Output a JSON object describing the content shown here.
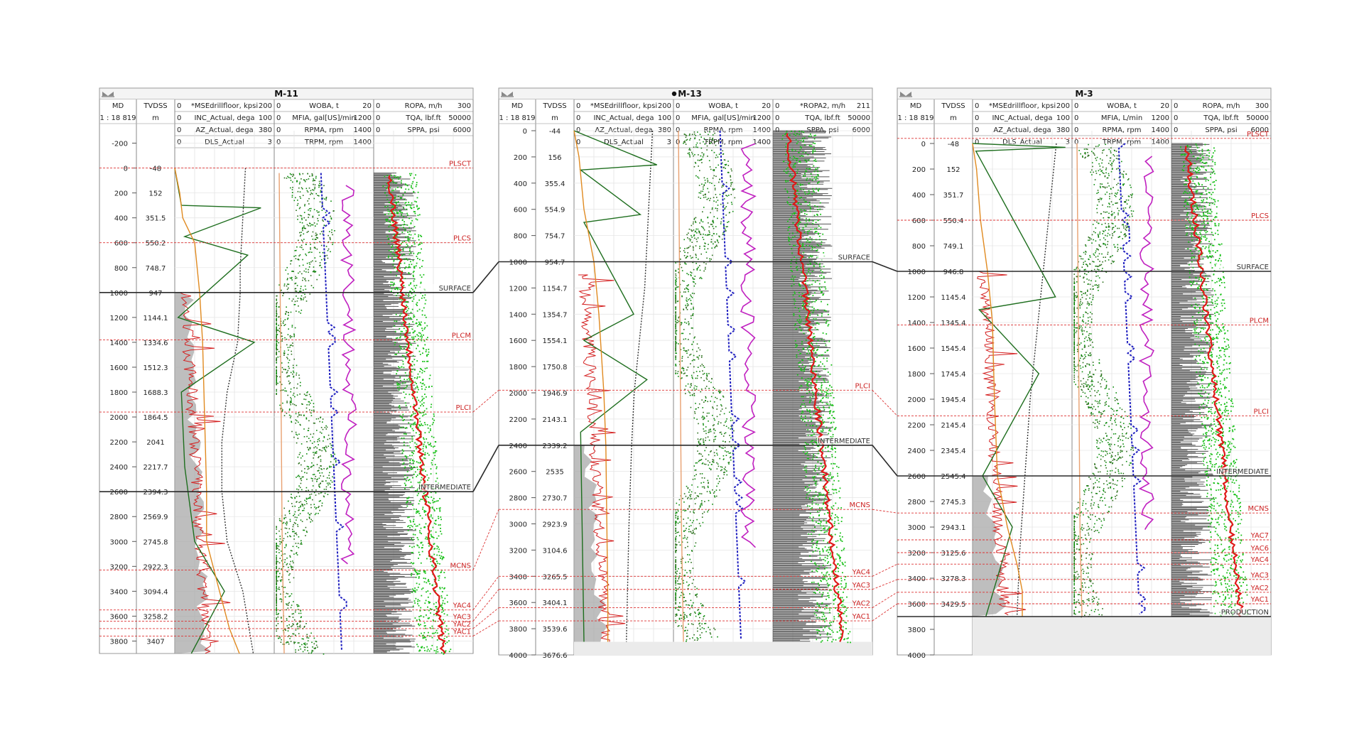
{
  "panels": [
    {
      "title": "M-11",
      "selected": false,
      "scale": "1 : 18 819",
      "md_col": "MD",
      "tvd_col": "TVDSS",
      "tvd_unit": "m",
      "curve_headers": [
        [
          {
            "left": "0",
            "name": "*MSEdrillfloor, kpsi",
            "right": "200",
            "color": "#d42020"
          },
          {
            "left": "0",
            "name": "INC_Actual, dega",
            "right": "100",
            "color": "#e08a20"
          },
          {
            "left": "0",
            "name": "AZ_Actual, dega",
            "right": "380",
            "color": "#222222"
          },
          {
            "left": "0",
            "name": "DLS_Actual",
            "right": "3",
            "color": "#1e7a1e"
          }
        ],
        [
          {
            "left": "0",
            "name": "WOBA, t",
            "right": "20",
            "color": "#1e8a1e"
          },
          {
            "left": "0",
            "name": "MFIA, gal[US]/min",
            "right": "1200",
            "color": "#2020c0"
          },
          {
            "left": "0",
            "name": "RPMA, rpm",
            "right": "1400",
            "color": "#e8a070"
          },
          {
            "left": "0",
            "name": "TRPM, rpm",
            "right": "1400",
            "color": "#c020c0"
          }
        ],
        [
          {
            "left": "0",
            "name": "ROPA, m/h",
            "right": "300",
            "color": "#222222"
          },
          {
            "left": "0",
            "name": "TQA, lbf.ft",
            "right": "50000",
            "color": "#1e9a1e"
          },
          {
            "left": "0",
            "name": "SPPA, psi",
            "right": "6000",
            "color": "#d42020"
          }
        ]
      ],
      "md_ticks": [
        "-200",
        "0",
        "200",
        "400",
        "600",
        "800",
        "1000",
        "1200",
        "1400",
        "1600",
        "1800",
        "2000",
        "2200",
        "2400",
        "2600",
        "2800",
        "3000",
        "3200",
        "3400",
        "3600",
        "3800"
      ],
      "tvd_ticks": [
        "-48",
        "152",
        "351.5",
        "550.2",
        "748.7",
        "947",
        "1144.1",
        "1334.6",
        "1512.3",
        "1688.3",
        "1864.5",
        "2041",
        "2217.7",
        "2394.3",
        "2569.9",
        "2745.8",
        "2922.3",
        "3094.4",
        "3258.2",
        "3407"
      ],
      "tops": [
        {
          "name": "PLSCT",
          "md": 0,
          "major": false
        },
        {
          "name": "PLCS",
          "md": 600,
          "major": false
        },
        {
          "name": "SURFACE",
          "md": 1000,
          "major": true
        },
        {
          "name": "PLCM",
          "md": 1380,
          "major": false
        },
        {
          "name": "PLCI",
          "md": 1960,
          "major": false
        },
        {
          "name": "INTERMEDIATE",
          "md": 2600,
          "major": true
        },
        {
          "name": "MCNS",
          "md": 3230,
          "major": false
        },
        {
          "name": "YAC4",
          "md": 3550,
          "major": false
        },
        {
          "name": "YAC3",
          "md": 3640,
          "major": false
        },
        {
          "name": "YAC2",
          "md": 3700,
          "major": false
        },
        {
          "name": "YAC1",
          "md": 3760,
          "major": false
        }
      ]
    },
    {
      "title": "M-13",
      "selected": true,
      "scale": "1 : 18 819",
      "md_col": "MD",
      "tvd_col": "TVDSS",
      "tvd_unit": "m",
      "curve_headers": [
        [
          {
            "left": "0",
            "name": "*MSEdrillfloor, kpsi",
            "right": "200",
            "color": "#d42020"
          },
          {
            "left": "0",
            "name": "INC_Actual, dega",
            "right": "100",
            "color": "#e08a20"
          },
          {
            "left": "0",
            "name": "AZ_Actual, dega",
            "right": "380",
            "color": "#222222"
          },
          {
            "left": "0",
            "name": "DLS_Actual",
            "right": "3",
            "color": "#1e7a1e"
          }
        ],
        [
          {
            "left": "0",
            "name": "WOBA, t",
            "right": "20",
            "color": "#1e8a1e"
          },
          {
            "left": "0",
            "name": "MFIA, gal[US]/min",
            "right": "1200",
            "color": "#2020c0"
          },
          {
            "left": "0",
            "name": "RPMA, rpm",
            "right": "1400",
            "color": "#e8a070"
          },
          {
            "left": "0",
            "name": "TRPM, rpm",
            "right": "1400",
            "color": "#c020c0"
          }
        ],
        [
          {
            "left": "0",
            "name": "*ROPA2, m/h",
            "right": "211",
            "color": "#222222"
          },
          {
            "left": "0",
            "name": "TQA, lbf.ft",
            "right": "50000",
            "color": "#1e9a1e"
          },
          {
            "left": "0",
            "name": "SPPA, psi",
            "right": "6000",
            "color": "#d42020"
          }
        ]
      ],
      "md_ticks": [
        "0",
        "200",
        "400",
        "600",
        "800",
        "1000",
        "1200",
        "1400",
        "1600",
        "1800",
        "2000",
        "2200",
        "2400",
        "2600",
        "2800",
        "3000",
        "3200",
        "3400",
        "3600",
        "3800",
        "4000"
      ],
      "tvd_ticks": [
        "-44",
        "156",
        "355.4",
        "554.9",
        "754.7",
        "954.7",
        "1154.7",
        "1354.7",
        "1554.1",
        "1750.8",
        "1946.9",
        "2143.1",
        "2339.2",
        "2535",
        "2730.7",
        "2923.9",
        "3104.6",
        "3265.5",
        "3404.1",
        "3539.6",
        "3676.6"
      ],
      "tops": [
        {
          "name": "SURFACE",
          "md": 1000,
          "major": true
        },
        {
          "name": "PLCI",
          "md": 1980,
          "major": false
        },
        {
          "name": "INTERMEDIATE",
          "md": 2400,
          "major": true
        },
        {
          "name": "MCNS",
          "md": 2890,
          "major": false
        },
        {
          "name": "YAC4",
          "md": 3400,
          "major": false
        },
        {
          "name": "YAC3",
          "md": 3500,
          "major": false
        },
        {
          "name": "YAC2",
          "md": 3640,
          "major": false
        },
        {
          "name": "YAC1",
          "md": 3740,
          "major": false
        }
      ]
    },
    {
      "title": "M-3",
      "selected": false,
      "scale": "1 : 18 819",
      "md_col": "MD",
      "tvd_col": "TVDSS",
      "tvd_unit": "m",
      "curve_headers": [
        [
          {
            "left": "0",
            "name": "*MSEdrillfloor, kpsi",
            "right": "200",
            "color": "#d42020"
          },
          {
            "left": "0",
            "name": "INC_Actual, dega",
            "right": "100",
            "color": "#e08a20"
          },
          {
            "left": "0",
            "name": "AZ_Actual, dega",
            "right": "380",
            "color": "#222222"
          },
          {
            "left": "0",
            "name": "DLS_Actual",
            "right": "3",
            "color": "#1e7a1e"
          }
        ],
        [
          {
            "left": "0",
            "name": "WOBA, t",
            "right": "20",
            "color": "#1e8a1e"
          },
          {
            "left": "0",
            "name": "MFIA, L/min",
            "right": "1200",
            "color": "#2020c0"
          },
          {
            "left": "0",
            "name": "RPMA, rpm",
            "right": "1400",
            "color": "#e8a070"
          },
          {
            "left": "0",
            "name": "TRPM, rpm",
            "right": "1400",
            "color": "#c020c0"
          }
        ],
        [
          {
            "left": "0",
            "name": "ROPA, m/h",
            "right": "300",
            "color": "#222222"
          },
          {
            "left": "0",
            "name": "TQA, lbf.ft",
            "right": "50000",
            "color": "#1e9a1e"
          },
          {
            "left": "0",
            "name": "SPPA, psi",
            "right": "6000",
            "color": "#d42020"
          }
        ]
      ],
      "md_ticks": [
        "0",
        "200",
        "400",
        "600",
        "800",
        "1000",
        "1200",
        "1400",
        "1600",
        "1800",
        "2000",
        "2200",
        "2400",
        "2600",
        "2800",
        "3000",
        "3200",
        "3400",
        "3600",
        "3800",
        "4000"
      ],
      "tvd_ticks": [
        "-48",
        "152",
        "351.7",
        "550.4",
        "749.1",
        "946.8",
        "1145.4",
        "1345.4",
        "1545.4",
        "1745.4",
        "1945.4",
        "2145.4",
        "2345.4",
        "2545.4",
        "2745.3",
        "2943.1",
        "3125.6",
        "3278.3",
        "3429.5"
      ],
      "tops": [
        {
          "name": "PLSCT",
          "md": -40,
          "major": false
        },
        {
          "name": "PLCS",
          "md": 600,
          "major": false
        },
        {
          "name": "SURFACE",
          "md": 1000,
          "major": true
        },
        {
          "name": "PLCM",
          "md": 1420,
          "major": false
        },
        {
          "name": "PLCI",
          "md": 2130,
          "major": false
        },
        {
          "name": "INTERMEDIATE",
          "md": 2600,
          "major": true
        },
        {
          "name": "MCNS",
          "md": 2890,
          "major": false
        },
        {
          "name": "YAC7",
          "md": 3100,
          "major": false
        },
        {
          "name": "YAC6",
          "md": 3200,
          "major": false
        },
        {
          "name": "YAC4",
          "md": 3290,
          "major": false
        },
        {
          "name": "YAC3",
          "md": 3410,
          "major": false
        },
        {
          "name": "YAC2",
          "md": 3510,
          "major": false
        },
        {
          "name": "YAC1",
          "md": 3600,
          "major": false
        },
        {
          "name": "PRODUCTION",
          "md": 3700,
          "major": true
        }
      ]
    }
  ],
  "chart_data": [
    {
      "type": "line",
      "title": "M-11",
      "depth_axis": "MD",
      "ylim": [
        -300,
        3900
      ],
      "reversed": true,
      "total_depth_md": 3900,
      "series": [
        {
          "name": "*MSEdrillfloor, kpsi",
          "range": [
            0,
            200
          ]
        },
        {
          "name": "INC_Actual, dega",
          "range": [
            0,
            100
          ],
          "x": [
            0,
            5,
            8,
            20,
            25,
            28,
            30,
            32,
            32,
            45,
            55,
            65
          ],
          "y": [
            0,
            200,
            400,
            600,
            1000,
            1400,
            2000,
            2600,
            3000,
            3400,
            3700,
            3900
          ]
        },
        {
          "name": "AZ_Actual, dega",
          "range": [
            0,
            380
          ],
          "x": [
            270,
            260,
            250,
            250,
            240,
            200,
            180,
            180,
            200,
            260,
            300
          ],
          "y": [
            0,
            400,
            800,
            1000,
            1400,
            1800,
            2200,
            2600,
            3000,
            3400,
            3900
          ]
        },
        {
          "name": "DLS_Actual",
          "range": [
            0,
            3
          ],
          "x": [
            0,
            0.2,
            2.6,
            0.3,
            2.2,
            0.1,
            2.4,
            0.2,
            0.3,
            0.6,
            1.5,
            0.5
          ],
          "y": [
            0,
            300,
            320,
            550,
            700,
            1200,
            1400,
            1800,
            2400,
            3000,
            3400,
            3900
          ]
        },
        {
          "name": "WOBA, t",
          "range": [
            0,
            20
          ]
        },
        {
          "name": "MFIA, gal[US]/min",
          "range": [
            0,
            1200
          ]
        },
        {
          "name": "TRPM, rpm",
          "range": [
            0,
            1400
          ]
        },
        {
          "name": "ROPA, m/h",
          "range": [
            0,
            300
          ]
        },
        {
          "name": "TQA, lbf.ft",
          "range": [
            0,
            50000
          ]
        },
        {
          "name": "SPPA, psi",
          "range": [
            0,
            6000
          ]
        }
      ]
    },
    {
      "type": "line",
      "title": "M-13",
      "depth_axis": "MD",
      "ylim": [
        0,
        4000
      ],
      "reversed": true,
      "total_depth_md": 3900,
      "series": [
        {
          "name": "*MSEdrillfloor, kpsi",
          "range": [
            0,
            200
          ]
        },
        {
          "name": "INC_Actual, dega",
          "range": [
            0,
            100
          ],
          "x": [
            0,
            5,
            10,
            20,
            25,
            30,
            32,
            33,
            34,
            34
          ],
          "y": [
            0,
            200,
            600,
            1000,
            1400,
            2000,
            2400,
            3000,
            3600,
            3900
          ]
        },
        {
          "name": "AZ_Actual, dega",
          "range": [
            0,
            380
          ],
          "x": [
            300,
            290,
            280,
            270,
            250,
            230,
            220,
            210,
            200
          ],
          "y": [
            0,
            400,
            800,
            1200,
            1600,
            2000,
            2400,
            3000,
            3900
          ]
        },
        {
          "name": "DLS_Actual",
          "range": [
            0,
            3
          ],
          "x": [
            0,
            2.5,
            0.2,
            2.0,
            0.3,
            1.8,
            0.3,
            2.2,
            0.2,
            0.3
          ],
          "y": [
            0,
            260,
            300,
            640,
            700,
            1400,
            1600,
            1900,
            2300,
            3900
          ]
        },
        {
          "name": "WOBA, t",
          "range": [
            0,
            20
          ]
        },
        {
          "name": "MFIA, gal[US]/min",
          "range": [
            0,
            1200
          ]
        },
        {
          "name": "TRPM, rpm",
          "range": [
            0,
            1400
          ]
        },
        {
          "name": "*ROPA2, m/h",
          "range": [
            0,
            211
          ]
        },
        {
          "name": "TQA, lbf.ft",
          "range": [
            0,
            50000
          ]
        },
        {
          "name": "SPPA, psi",
          "range": [
            0,
            6000
          ]
        }
      ]
    },
    {
      "type": "line",
      "title": "M-3",
      "depth_axis": "MD",
      "ylim": [
        -100,
        4000
      ],
      "reversed": true,
      "total_depth_md": 3700,
      "series": [
        {
          "name": "*MSEdrillfloor, kpsi",
          "range": [
            0,
            200
          ]
        },
        {
          "name": "INC_Actual, dega",
          "range": [
            0,
            100
          ],
          "x": [
            0,
            4,
            8,
            15,
            20,
            22,
            25,
            35,
            45,
            50,
            50
          ],
          "y": [
            0,
            200,
            600,
            1000,
            1400,
            2000,
            2600,
            3000,
            3300,
            3500,
            3700
          ]
        },
        {
          "name": "AZ_Actual, dega",
          "range": [
            0,
            380
          ],
          "x": [
            320,
            300,
            280,
            260,
            240,
            220,
            200,
            180,
            170
          ],
          "y": [
            0,
            400,
            800,
            1200,
            1600,
            2000,
            2600,
            3200,
            3700
          ]
        },
        {
          "name": "DLS_Actual",
          "range": [
            0,
            3
          ],
          "x": [
            0,
            2.8,
            0.1,
            2.5,
            0.2,
            2.0,
            0.3,
            1.2,
            0.4
          ],
          "y": [
            0,
            30,
            60,
            1200,
            1300,
            1800,
            2600,
            3000,
            3700
          ]
        },
        {
          "name": "WOBA, t",
          "range": [
            0,
            20
          ]
        },
        {
          "name": "MFIA, L/min",
          "range": [
            0,
            1200
          ]
        },
        {
          "name": "TRPM, rpm",
          "range": [
            0,
            1400
          ]
        },
        {
          "name": "ROPA, m/h",
          "range": [
            0,
            300
          ]
        },
        {
          "name": "TQA, lbf.ft",
          "range": [
            0,
            50000
          ]
        },
        {
          "name": "SPPA, psi",
          "range": [
            0,
            6000
          ]
        }
      ]
    }
  ]
}
